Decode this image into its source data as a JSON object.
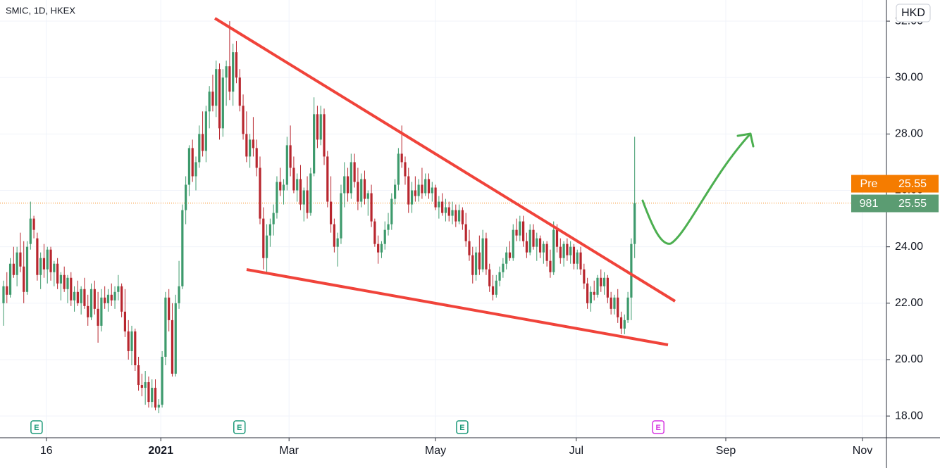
{
  "chart_data": {
    "type": "candlestick",
    "title": "SMIC, 1D, HKEX",
    "currency": "HKD",
    "up_color": "#3d9a6c",
    "down_color": "#b8262e",
    "xlim": [
      -1.04,
      261.6
    ],
    "ylim": [
      17.23,
      32.75
    ],
    "xticks": [
      {
        "value": 12.7,
        "label": "16"
      },
      {
        "value": 46.6,
        "label": "2021"
      },
      {
        "value": 84.6,
        "label": "Mar"
      },
      {
        "value": 128,
        "label": "May"
      },
      {
        "value": 169.7,
        "label": "Jul"
      },
      {
        "value": 214,
        "label": "Sep"
      },
      {
        "value": 254.5,
        "label": "Nov"
      }
    ],
    "yticks": [
      {
        "value": 18,
        "label": "18.00"
      },
      {
        "value": 20,
        "label": "20.00"
      },
      {
        "value": 22,
        "label": "22.00"
      },
      {
        "value": 24,
        "label": "24.00"
      },
      {
        "value": 26,
        "label": "26.00"
      },
      {
        "value": 28,
        "label": "28.00"
      },
      {
        "value": 30,
        "label": "30.00"
      },
      {
        "value": 32,
        "label": "32.00"
      }
    ],
    "grid": true,
    "pre_label": "Pre",
    "pre_price": 25.55,
    "last_label": "981",
    "last_price": 25.55,
    "events": [
      {
        "label": "E",
        "x": 9.8,
        "color": "#1e9a7a"
      },
      {
        "label": "E",
        "x": 69.9,
        "color": "#1e9a7a"
      },
      {
        "label": "E",
        "x": 135.9,
        "color": "#1e9a7a"
      },
      {
        "label": "E",
        "x": 194,
        "color": "#d633e0"
      }
    ],
    "candles": [
      [
        22.0,
        22.8,
        21.2,
        22.6
      ],
      [
        22.6,
        23.1,
        22.0,
        22.3
      ],
      [
        22.3,
        23.6,
        22.2,
        23.4
      ],
      [
        23.4,
        24.0,
        22.9,
        23.0
      ],
      [
        23.0,
        24.0,
        22.6,
        23.8
      ],
      [
        23.8,
        24.5,
        23.1,
        23.3
      ],
      [
        23.3,
        24.2,
        22.0,
        22.4
      ],
      [
        22.4,
        24.2,
        22.3,
        24.0
      ],
      [
        24.1,
        25.6,
        23.9,
        25.0
      ],
      [
        25.0,
        25.1,
        24.3,
        24.6
      ],
      [
        24.3,
        24.5,
        22.8,
        23.0
      ],
      [
        23.0,
        23.8,
        22.5,
        23.6
      ],
      [
        23.6,
        24.1,
        22.9,
        23.2
      ],
      [
        23.2,
        24.0,
        22.7,
        23.9
      ],
      [
        23.9,
        24.0,
        22.8,
        23.1
      ],
      [
        23.1,
        23.5,
        22.6,
        23.4
      ],
      [
        23.4,
        23.6,
        22.5,
        22.7
      ],
      [
        22.7,
        23.1,
        22.1,
        23.0
      ],
      [
        23.0,
        23.3,
        22.4,
        22.5
      ],
      [
        22.5,
        23.0,
        22.0,
        22.9
      ],
      [
        22.9,
        23.1,
        21.9,
        22.1
      ],
      [
        22.1,
        22.6,
        21.7,
        22.4
      ],
      [
        22.4,
        22.8,
        21.9,
        22.0
      ],
      [
        22.0,
        22.6,
        21.6,
        22.5
      ],
      [
        22.5,
        22.9,
        21.8,
        21.9
      ],
      [
        21.9,
        22.3,
        21.2,
        21.5
      ],
      [
        21.5,
        22.7,
        21.4,
        22.5
      ],
      [
        22.5,
        22.8,
        21.6,
        21.8
      ],
      [
        21.8,
        22.4,
        20.6,
        21.2
      ],
      [
        21.2,
        22.5,
        21.0,
        22.2
      ],
      [
        22.2,
        22.6,
        21.8,
        22.0
      ],
      [
        22.0,
        22.5,
        21.7,
        22.3
      ],
      [
        22.3,
        22.7,
        21.9,
        22.1
      ],
      [
        22.1,
        22.6,
        21.8,
        22.4
      ],
      [
        22.4,
        23.0,
        22.1,
        22.6
      ],
      [
        22.6,
        22.7,
        21.5,
        21.7
      ],
      [
        21.7,
        22.5,
        20.8,
        21.0
      ],
      [
        21.0,
        21.4,
        20.0,
        20.3
      ],
      [
        20.3,
        21.2,
        19.8,
        21.0
      ],
      [
        21.0,
        21.1,
        19.6,
        19.8
      ],
      [
        19.8,
        20.1,
        18.9,
        19.1
      ],
      [
        19.1,
        19.5,
        18.7,
        19.0
      ],
      [
        19.0,
        19.6,
        18.4,
        19.2
      ],
      [
        19.2,
        19.4,
        18.3,
        18.5
      ],
      [
        18.5,
        19.3,
        18.3,
        19.0
      ],
      [
        19.0,
        19.3,
        18.2,
        18.3
      ],
      [
        18.3,
        18.6,
        18.1,
        18.4
      ],
      [
        18.4,
        20.3,
        18.3,
        20.1
      ],
      [
        20.1,
        22.4,
        19.8,
        22.2
      ],
      [
        22.2,
        22.5,
        21.0,
        21.4
      ],
      [
        21.4,
        22.0,
        19.4,
        19.5
      ],
      [
        19.5,
        22.3,
        19.4,
        22.0
      ],
      [
        22.0,
        23.5,
        21.8,
        22.6
      ],
      [
        22.6,
        25.5,
        22.5,
        25.3
      ],
      [
        25.3,
        26.5,
        24.8,
        26.2
      ],
      [
        26.2,
        27.6,
        25.8,
        27.5
      ],
      [
        27.5,
        27.8,
        26.3,
        26.5
      ],
      [
        26.5,
        27.2,
        26.0,
        27.0
      ],
      [
        27.0,
        28.3,
        26.8,
        28.0
      ],
      [
        28.0,
        28.8,
        27.2,
        27.4
      ],
      [
        27.4,
        29.0,
        27.0,
        28.8
      ],
      [
        28.8,
        29.7,
        28.2,
        29.5
      ],
      [
        29.5,
        30.1,
        28.8,
        29.0
      ],
      [
        29.0,
        30.6,
        28.6,
        30.3
      ],
      [
        30.3,
        30.5,
        27.8,
        28.2
      ],
      [
        28.2,
        30.3,
        27.9,
        30.0
      ],
      [
        30.0,
        30.6,
        29.0,
        30.4
      ],
      [
        30.4,
        32.0,
        29.2,
        29.5
      ],
      [
        29.5,
        31.2,
        29.0,
        30.9
      ],
      [
        30.9,
        31.3,
        29.8,
        30.0
      ],
      [
        30.0,
        30.3,
        28.8,
        29.0
      ],
      [
        29.0,
        29.4,
        27.8,
        28.0
      ],
      [
        28.0,
        28.8,
        27.0,
        27.2
      ],
      [
        27.2,
        28.0,
        26.8,
        27.8
      ],
      [
        27.8,
        28.6,
        27.2,
        27.5
      ],
      [
        27.5,
        27.8,
        26.5,
        26.8
      ],
      [
        26.8,
        27.2,
        24.8,
        25.0
      ],
      [
        25.0,
        25.4,
        23.2,
        23.6
      ],
      [
        23.6,
        24.8,
        23.1,
        24.4
      ],
      [
        24.4,
        25.0,
        24.0,
        24.8
      ],
      [
        24.8,
        25.5,
        24.4,
        25.2
      ],
      [
        25.2,
        26.5,
        25.0,
        26.3
      ],
      [
        26.3,
        26.8,
        25.8,
        26.0
      ],
      [
        26.0,
        26.4,
        25.5,
        26.2
      ],
      [
        26.2,
        27.9,
        26.0,
        27.6
      ],
      [
        27.6,
        28.3,
        26.5,
        26.8
      ],
      [
        26.8,
        27.2,
        25.9,
        26.0
      ],
      [
        26.0,
        26.6,
        25.6,
        26.4
      ],
      [
        26.4,
        26.9,
        25.3,
        25.5
      ],
      [
        25.5,
        26.1,
        24.9,
        26.0
      ],
      [
        26.0,
        26.5,
        25.0,
        25.2
      ],
      [
        25.2,
        26.8,
        25.1,
        26.6
      ],
      [
        26.6,
        29.3,
        26.5,
        28.7
      ],
      [
        28.7,
        29.0,
        27.5,
        27.8
      ],
      [
        27.8,
        29.0,
        27.6,
        28.7
      ],
      [
        28.7,
        28.9,
        26.9,
        27.2
      ],
      [
        27.2,
        27.4,
        25.4,
        25.6
      ],
      [
        25.6,
        26.5,
        24.5,
        24.8
      ],
      [
        24.8,
        25.0,
        23.8,
        24.0
      ],
      [
        24.0,
        24.5,
        23.3,
        24.3
      ],
      [
        24.3,
        26.2,
        24.1,
        25.9
      ],
      [
        25.9,
        27.0,
        25.4,
        26.5
      ],
      [
        26.5,
        26.8,
        25.6,
        25.9
      ],
      [
        25.9,
        27.3,
        25.7,
        27.0
      ],
      [
        27.0,
        27.3,
        26.1,
        26.3
      ],
      [
        26.3,
        26.8,
        25.3,
        25.6
      ],
      [
        25.6,
        26.6,
        25.4,
        26.4
      ],
      [
        26.4,
        26.7,
        25.5,
        25.7
      ],
      [
        25.7,
        26.0,
        25.1,
        25.9
      ],
      [
        25.9,
        26.2,
        24.7,
        24.9
      ],
      [
        24.9,
        25.0,
        24.0,
        24.1
      ],
      [
        24.1,
        24.4,
        23.4,
        23.8
      ],
      [
        23.8,
        24.2,
        23.6,
        24.1
      ],
      [
        24.1,
        24.9,
        23.9,
        24.6
      ],
      [
        24.6,
        25.2,
        24.4,
        24.8
      ],
      [
        24.8,
        25.9,
        24.6,
        25.7
      ],
      [
        25.7,
        26.4,
        25.5,
        26.2
      ],
      [
        26.2,
        27.5,
        26.0,
        27.3
      ],
      [
        27.3,
        28.3,
        26.8,
        27.0
      ],
      [
        27.0,
        27.2,
        26.2,
        26.5
      ],
      [
        26.5,
        26.8,
        25.2,
        25.5
      ],
      [
        25.5,
        26.3,
        25.2,
        26.0
      ],
      [
        26.0,
        26.5,
        25.6,
        25.8
      ],
      [
        25.8,
        26.4,
        25.6,
        26.2
      ],
      [
        26.2,
        26.8,
        25.7,
        25.9
      ],
      [
        25.9,
        26.6,
        25.8,
        26.4
      ],
      [
        26.4,
        26.6,
        25.7,
        25.9
      ],
      [
        25.9,
        26.3,
        25.6,
        26.1
      ],
      [
        26.1,
        26.2,
        25.3,
        25.4
      ],
      [
        25.4,
        25.8,
        25.0,
        25.6
      ],
      [
        25.6,
        25.9,
        25.1,
        25.2
      ],
      [
        25.2,
        25.7,
        24.9,
        25.4
      ],
      [
        25.4,
        25.6,
        24.9,
        25.1
      ],
      [
        25.1,
        25.6,
        24.8,
        25.3
      ],
      [
        25.3,
        25.5,
        24.7,
        24.9
      ],
      [
        24.9,
        25.5,
        24.8,
        25.3
      ],
      [
        25.3,
        25.4,
        24.6,
        24.8
      ],
      [
        24.8,
        25.2,
        24.0,
        24.2
      ],
      [
        24.2,
        24.6,
        23.5,
        23.7
      ],
      [
        23.7,
        24.0,
        22.7,
        23.0
      ],
      [
        23.0,
        24.0,
        22.8,
        23.8
      ],
      [
        23.8,
        24.4,
        23.0,
        23.2
      ],
      [
        23.2,
        24.6,
        23.1,
        24.3
      ],
      [
        24.3,
        24.5,
        23.0,
        23.2
      ],
      [
        23.2,
        23.4,
        22.4,
        22.6
      ],
      [
        22.6,
        23.0,
        22.1,
        22.3
      ],
      [
        22.3,
        23.0,
        22.2,
        22.8
      ],
      [
        22.8,
        23.3,
        22.6,
        23.1
      ],
      [
        23.1,
        23.6,
        22.9,
        23.4
      ],
      [
        23.4,
        24.0,
        23.2,
        23.8
      ],
      [
        23.8,
        24.2,
        23.5,
        23.6
      ],
      [
        23.6,
        24.8,
        23.5,
        24.6
      ],
      [
        24.6,
        25.0,
        24.2,
        24.4
      ],
      [
        24.4,
        25.1,
        24.2,
        24.9
      ],
      [
        24.9,
        25.1,
        24.0,
        24.2
      ],
      [
        24.2,
        24.5,
        23.6,
        23.8
      ],
      [
        23.8,
        24.8,
        23.7,
        24.6
      ],
      [
        24.6,
        24.8,
        23.9,
        24.0
      ],
      [
        24.0,
        24.5,
        23.5,
        24.3
      ],
      [
        24.3,
        24.4,
        23.6,
        23.8
      ],
      [
        23.8,
        24.2,
        23.4,
        24.1
      ],
      [
        24.1,
        24.2,
        23.3,
        23.5
      ],
      [
        23.5,
        23.9,
        22.9,
        23.1
      ],
      [
        23.1,
        24.9,
        23.0,
        24.6
      ],
      [
        24.6,
        24.8,
        23.8,
        24.0
      ],
      [
        24.0,
        24.3,
        23.4,
        23.6
      ],
      [
        23.6,
        24.2,
        23.3,
        24.1
      ],
      [
        24.1,
        24.3,
        23.5,
        23.7
      ],
      [
        23.7,
        24.2,
        23.4,
        24.0
      ],
      [
        24.0,
        24.1,
        23.2,
        23.4
      ],
      [
        23.4,
        23.9,
        23.2,
        23.8
      ],
      [
        23.8,
        24.0,
        23.0,
        23.2
      ],
      [
        23.2,
        23.4,
        22.5,
        22.7
      ],
      [
        22.7,
        22.9,
        21.8,
        22.0
      ],
      [
        22.0,
        22.6,
        21.7,
        22.4
      ],
      [
        22.4,
        22.8,
        22.1,
        22.3
      ],
      [
        22.3,
        23.0,
        22.2,
        22.9
      ],
      [
        22.9,
        23.2,
        22.4,
        22.6
      ],
      [
        22.6,
        23.1,
        22.3,
        22.9
      ],
      [
        22.9,
        23.0,
        22.0,
        22.2
      ],
      [
        22.2,
        22.4,
        21.6,
        21.8
      ],
      [
        21.8,
        22.3,
        21.6,
        22.2
      ],
      [
        22.2,
        22.5,
        21.3,
        21.5
      ],
      [
        21.5,
        21.7,
        20.9,
        21.1
      ],
      [
        21.1,
        21.6,
        20.9,
        21.4
      ],
      [
        21.4,
        22.4,
        21.3,
        22.2
      ],
      [
        22.2,
        24.3,
        21.4,
        24.1
      ],
      [
        24.1,
        27.9,
        23.6,
        25.55
      ]
    ]
  }
}
